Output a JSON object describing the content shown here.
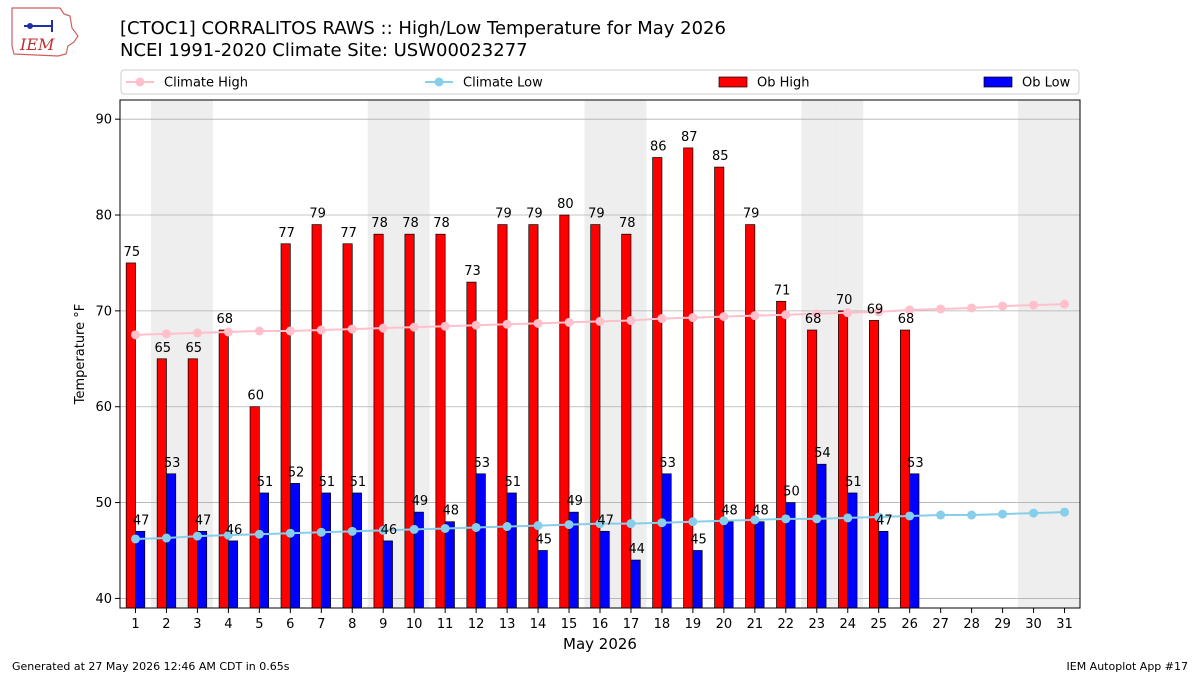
{
  "header": {
    "title_line1": "[CTOC1] CORRALITOS RAWS :: High/Low Temperature for May 2026",
    "title_line2": "NCEI 1991-2020 Climate Site: USW00023277"
  },
  "logo": {
    "text": "IEM"
  },
  "footer": {
    "generated": "Generated at 27 May 2026 12:46 AM CDT in 0.65s",
    "app": "IEM Autoplot App #17"
  },
  "colors": {
    "climate_high": "#ffc0cb",
    "climate_low": "#87ceeb",
    "ob_high": "#ff0000",
    "ob_low": "#0000ff",
    "weekend_shade": "#eeeeee",
    "grid": "#b0b0b0"
  },
  "chart_data": {
    "type": "bar",
    "xlabel": "May 2026",
    "ylabel": "Temperature °F",
    "ylim": [
      39,
      92
    ],
    "xlim": [
      0.5,
      31.5
    ],
    "yticks": [
      40,
      50,
      60,
      70,
      80,
      90
    ],
    "grid": "horizontal",
    "legend_placement": "top",
    "shaded_weekend_days": [
      2,
      3,
      9,
      10,
      16,
      17,
      23,
      24,
      30,
      31
    ],
    "days": [
      1,
      2,
      3,
      4,
      5,
      6,
      7,
      8,
      9,
      10,
      11,
      12,
      13,
      14,
      15,
      16,
      17,
      18,
      19,
      20,
      21,
      22,
      23,
      24,
      25,
      26,
      27,
      28,
      29,
      30,
      31
    ],
    "series": [
      {
        "name": "Climate High",
        "kind": "line",
        "x": [
          1,
          2,
          3,
          4,
          5,
          6,
          7,
          8,
          9,
          10,
          11,
          12,
          13,
          14,
          15,
          16,
          17,
          18,
          19,
          20,
          21,
          22,
          23,
          24,
          25,
          26,
          27,
          28,
          29,
          30,
          31
        ],
        "values": [
          67.5,
          67.6,
          67.7,
          67.8,
          67.9,
          67.9,
          68.0,
          68.1,
          68.2,
          68.3,
          68.4,
          68.5,
          68.6,
          68.7,
          68.8,
          68.9,
          69.0,
          69.2,
          69.3,
          69.4,
          69.5,
          69.6,
          69.7,
          69.8,
          69.9,
          70.1,
          70.2,
          70.3,
          70.5,
          70.6,
          70.7
        ]
      },
      {
        "name": "Climate Low",
        "kind": "line",
        "x": [
          1,
          2,
          3,
          4,
          5,
          6,
          7,
          8,
          9,
          10,
          11,
          12,
          13,
          14,
          15,
          16,
          17,
          18,
          19,
          20,
          21,
          22,
          23,
          24,
          25,
          26,
          27,
          28,
          29,
          30,
          31
        ],
        "values": [
          46.2,
          46.3,
          46.5,
          46.6,
          46.7,
          46.8,
          46.9,
          47.0,
          47.1,
          47.2,
          47.3,
          47.4,
          47.5,
          47.6,
          47.7,
          47.8,
          47.8,
          47.9,
          48.0,
          48.1,
          48.2,
          48.3,
          48.3,
          48.4,
          48.5,
          48.6,
          48.7,
          48.7,
          48.8,
          48.9,
          49.0
        ]
      },
      {
        "name": "Ob High",
        "kind": "bar",
        "x": [
          1,
          2,
          3,
          4,
          5,
          6,
          7,
          8,
          9,
          10,
          11,
          12,
          13,
          14,
          15,
          16,
          17,
          18,
          19,
          20,
          21,
          22,
          23,
          24,
          25,
          26
        ],
        "values": [
          75,
          65,
          65,
          68,
          60,
          77,
          79,
          77,
          78,
          78,
          78,
          73,
          79,
          79,
          80,
          79,
          78,
          86,
          87,
          85,
          79,
          71,
          68,
          70,
          69,
          68
        ]
      },
      {
        "name": "Ob Low",
        "kind": "bar",
        "x": [
          1,
          2,
          3,
          4,
          5,
          6,
          7,
          8,
          9,
          10,
          11,
          12,
          13,
          14,
          15,
          16,
          17,
          18,
          19,
          20,
          21,
          22,
          23,
          24,
          25,
          26
        ],
        "values": [
          47,
          53,
          47,
          46,
          51,
          52,
          51,
          51,
          46,
          49,
          48,
          53,
          51,
          45,
          49,
          47,
          44,
          53,
          45,
          48,
          48,
          50,
          54,
          51,
          47,
          53
        ]
      }
    ]
  }
}
